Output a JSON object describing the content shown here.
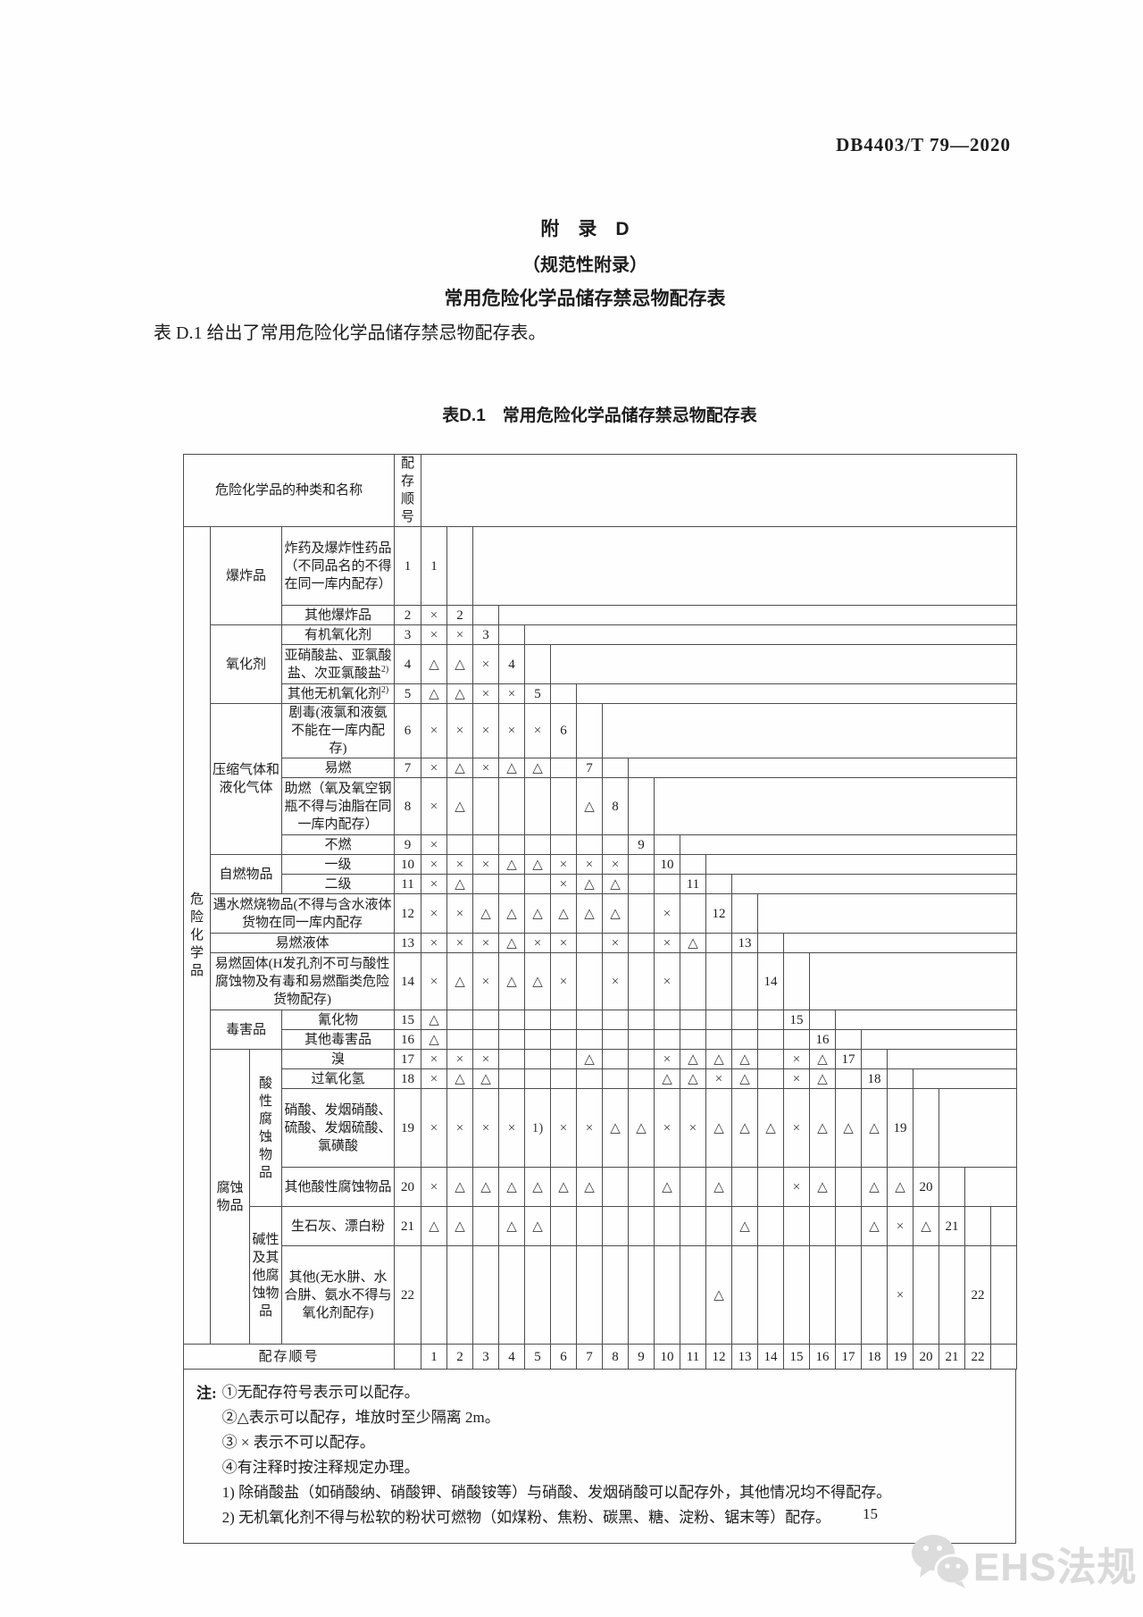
{
  "page": {
    "doc_code": "DB4403/T 79—2020",
    "appendix_title": "附　录　D",
    "appendix_subtitle": "（规范性附录）",
    "appendix_heading": "常用危险化学品储存禁忌物配存表",
    "intro_text": "表 D.1 给出了常用危险化学品储存禁忌物配存表。",
    "table_caption": "表D.1　常用危险化学品储存禁忌物配存表",
    "page_number": "15",
    "watermark_text": "EHS法规"
  },
  "table": {
    "header_label": "危险化学品的种类和名称",
    "seq_header": "配存顺号",
    "side_label": "危险化学品",
    "footer_label": "配存顺号",
    "footer_numbers": [
      1,
      2,
      3,
      4,
      5,
      6,
      7,
      8,
      9,
      10,
      11,
      12,
      13,
      14,
      15,
      16,
      17,
      18,
      19,
      20,
      21,
      22
    ],
    "symbols": {
      "forbidden": "×",
      "separated": "△",
      "note_ref": "1)"
    },
    "rows": [
      {
        "num": 1,
        "cat": {
          "text": "爆炸品",
          "span": 2
        },
        "name": "炸药及爆炸性药品（不同品名的不得在同一库内配存）",
        "cells": []
      },
      {
        "num": 2,
        "name": "其他爆炸品",
        "cells": [
          "×"
        ]
      },
      {
        "num": 3,
        "cat": {
          "text": "氧化剂",
          "span": 3
        },
        "name": "有机氧化剂",
        "cells": [
          "×",
          "×"
        ]
      },
      {
        "num": 4,
        "name": "亚硝酸盐、亚氯酸盐、次亚氯酸盐",
        "sup": "2)",
        "cells": [
          "△",
          "△",
          "×"
        ]
      },
      {
        "num": 5,
        "name": "其他无机氧化剂",
        "sup": "2)",
        "cells": [
          "△",
          "△",
          "×",
          "×"
        ]
      },
      {
        "num": 6,
        "cat": {
          "text": "压缩气体和液化气体",
          "span": 4
        },
        "name": "剧毒(液氯和液氨不能在一库内配存)",
        "cells": [
          "×",
          "×",
          "×",
          "×",
          "×"
        ]
      },
      {
        "num": 7,
        "name": "易燃",
        "cells": [
          "×",
          "△",
          "×",
          "△",
          "△",
          ""
        ]
      },
      {
        "num": 8,
        "name": "助燃（氧及氧空钢瓶不得与油脂在同一库内配存）",
        "cells": [
          "×",
          "△",
          "",
          "",
          "",
          "",
          "△"
        ]
      },
      {
        "num": 9,
        "name": "不燃",
        "cells": [
          "×",
          "",
          "",
          "",
          "",
          "",
          "",
          ""
        ]
      },
      {
        "num": 10,
        "cat": {
          "text": "自燃物品",
          "span": 2
        },
        "name": "一级",
        "cells": [
          "×",
          "×",
          "×",
          "△",
          "△",
          "×",
          "×",
          "×",
          ""
        ]
      },
      {
        "num": 11,
        "name": "二级",
        "cells": [
          "×",
          "△",
          "",
          "",
          "",
          "×",
          "△",
          "△",
          "",
          ""
        ]
      },
      {
        "num": 12,
        "wide": true,
        "name": "遇水燃烧物品(不得与含水液体货物在同一库内配存",
        "cells": [
          "×",
          "×",
          "△",
          "△",
          "△",
          "△",
          "△",
          "△",
          "",
          "×",
          ""
        ]
      },
      {
        "num": 13,
        "wide": true,
        "name": "易燃液体",
        "cells": [
          "×",
          "×",
          "×",
          "△",
          "×",
          "×",
          "",
          "×",
          "",
          "×",
          "△",
          ""
        ]
      },
      {
        "num": 14,
        "wide": true,
        "name": "易燃固体(H发孔剂不可与酸性腐蚀物及有毒和易燃酯类危险货物配存)",
        "cells": [
          "×",
          "△",
          "×",
          "△",
          "△",
          "×",
          "",
          "×",
          "",
          "×",
          "",
          "",
          ""
        ]
      },
      {
        "num": 15,
        "cat": {
          "text": "毒害品",
          "span": 2
        },
        "name": "氰化物",
        "cells": [
          "△",
          "",
          "",
          "",
          "",
          "",
          "",
          "",
          "",
          "",
          "",
          "",
          "",
          ""
        ]
      },
      {
        "num": 16,
        "name": "其他毒害品",
        "cells": [
          "△",
          "",
          "",
          "",
          "",
          "",
          "",
          "",
          "",
          "",
          "",
          "",
          "",
          "",
          ""
        ]
      },
      {
        "num": 17,
        "cat": {
          "text": "腐蚀物品",
          "span": 6,
          "colspan": 1
        },
        "subcat": {
          "text": "酸性腐蚀物品",
          "span": 4,
          "vertical": true
        },
        "name": "溴",
        "cells": [
          "×",
          "×",
          "×",
          "",
          "",
          "",
          "△",
          "",
          "",
          "×",
          "△",
          "△",
          "△",
          "",
          "×",
          "△"
        ]
      },
      {
        "num": 18,
        "name": "过氧化氢",
        "cells": [
          "×",
          "△",
          "△",
          "",
          "",
          "",
          "",
          "",
          "",
          "△",
          "△",
          "×",
          "△",
          "",
          "×",
          "△",
          ""
        ]
      },
      {
        "num": 19,
        "name": "硝酸、发烟硝酸、硫酸、发烟硫酸、氯磺酸",
        "cells": [
          "×",
          "×",
          "×",
          "×",
          "1)",
          "×",
          "×",
          "△",
          "△",
          "×",
          "×",
          "△",
          "△",
          "△",
          "×",
          "△",
          "△",
          "△"
        ]
      },
      {
        "num": 20,
        "name": "其他酸性腐蚀物品",
        "cells": [
          "×",
          "△",
          "△",
          "△",
          "△",
          "△",
          "△",
          "",
          "",
          "△",
          "",
          "△",
          "",
          "",
          "×",
          "△",
          "",
          "△",
          "△"
        ]
      },
      {
        "num": 21,
        "subcat": {
          "text": "碱性及其他腐蚀物品",
          "span": 2
        },
        "name": "生石灰、漂白粉",
        "cells": [
          "△",
          "△",
          "",
          "△",
          "△",
          "",
          "",
          "",
          "",
          "",
          "",
          "",
          "△",
          "",
          "",
          "",
          "",
          "△",
          "×",
          "△"
        ]
      },
      {
        "num": 22,
        "name": "其他(无水肼、水合肼、氨水不得与氧化剂配存)",
        "cells": [
          "",
          "",
          "",
          "",
          "",
          "",
          "",
          "",
          "",
          "",
          "",
          "△",
          "",
          "",
          "",
          "",
          "",
          "",
          "×",
          "",
          ""
        ]
      }
    ]
  },
  "notes": {
    "label": "注:",
    "lines": [
      "①无配存符号表示可以配存。",
      "②△表示可以配存，堆放时至少隔离 2m。",
      "③ × 表示不可以配存。",
      "④有注释时按注释规定办理。",
      "1) 除硝酸盐（如硝酸纳、硝酸钾、硝酸铵等）与硝酸、发烟硝酸可以配存外，其他情况均不得配存。",
      "2) 无机氧化剂不得与松软的粉状可燃物（如煤粉、焦粉、碳黑、糖、淀粉、锯末等）配存。"
    ]
  }
}
